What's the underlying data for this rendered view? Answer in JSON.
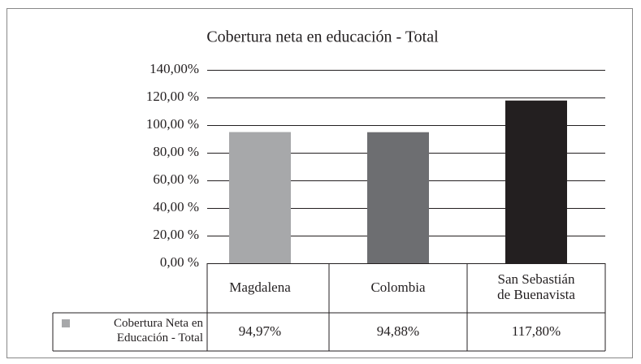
{
  "chart_data": {
    "type": "bar",
    "title": "Cobertura neta en educación - Total",
    "categories": [
      "Magdalena",
      "Colombia",
      "San Sebastián de Buenavista"
    ],
    "series": [
      {
        "name": "Cobertura Neta en Educación - Total",
        "color": "#a7a8aa",
        "colors": [
          "#a7a8aa",
          "#6d6e71",
          "#231f20"
        ],
        "values": [
          94.97,
          94.88,
          117.8
        ],
        "value_labels": [
          "94,97%",
          "94,88%",
          "117,80%"
        ]
      }
    ],
    "ylim": [
      0,
      140
    ],
    "yticks": [
      {
        "value": 0,
        "label": "0,00 %"
      },
      {
        "value": 20,
        "label": "20,00 %"
      },
      {
        "value": 40,
        "label": "40,00 %"
      },
      {
        "value": 60,
        "label": "60,00 %"
      },
      {
        "value": 80,
        "label": "80,00 %"
      },
      {
        "value": 100,
        "label": "100,00 %"
      },
      {
        "value": 120,
        "label": "120,00 %"
      },
      {
        "value": 140,
        "label": "140,00%"
      }
    ],
    "grid": true
  }
}
